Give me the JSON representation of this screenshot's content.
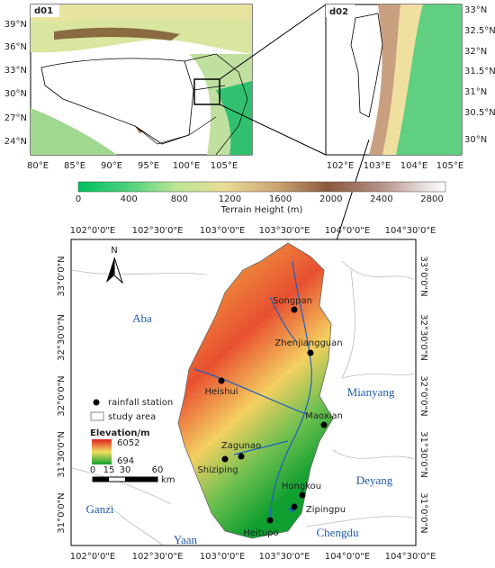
{
  "panel_d01": {
    "label": "d01",
    "lon_ticks": [
      "80°E",
      "85°E",
      "90°E",
      "95°E",
      "100°E",
      "105°E"
    ],
    "lat_ticks": [
      "39°N",
      "36°N",
      "33°N",
      "30°N",
      "27°N",
      "24°N"
    ]
  },
  "panel_d02": {
    "label": "d02",
    "lon_ticks": [
      "102°E",
      "103°E",
      "104°E",
      "105°E"
    ],
    "lat_ticks": [
      "33°N",
      "32.5°N",
      "32°N",
      "31.5°N",
      "31°N",
      "30.5°N",
      "30°N"
    ]
  },
  "colorbar": {
    "ticks": [
      0,
      400,
      800,
      1200,
      1600,
      2000,
      2400,
      2800
    ],
    "label": "Terrain Height (m)"
  },
  "main_map": {
    "lon_ticks": [
      "102°0'0\"E",
      "102°30'0\"E",
      "103°0'0\"E",
      "103°30'0\"E",
      "104°0'0\"E",
      "104°30'0\"E"
    ],
    "lat_ticks": [
      "33°0'0\"N",
      "32°30'0\"N",
      "32°0'0\"N",
      "31°30'0\"N",
      "31°0'0\"N"
    ],
    "north": "N",
    "regions": [
      "Aba",
      "Mianyang",
      "Deyang",
      "Chengdu",
      "Ganzi",
      "Yaan"
    ],
    "stations": [
      "Songpan",
      "Zhenjiangguan",
      "Heishui",
      "Maoxian",
      "Zagunao",
      "Shiziping",
      "Hongkou",
      "Zipingpu",
      "Heitupo"
    ],
    "legend": {
      "station": "rainfall station",
      "area": "study area",
      "elevation_title": "Elevation/m",
      "elevation_max": "6052",
      "elevation_min": "694"
    },
    "scale": {
      "ticks": [
        "0",
        "15",
        "30",
        "60"
      ],
      "unit": "km"
    }
  }
}
